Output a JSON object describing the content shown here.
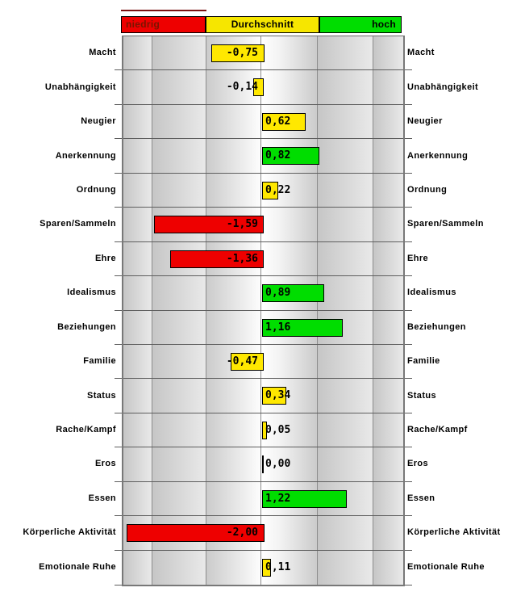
{
  "header": {
    "low_label": "niedrig",
    "avg_label": "Durchschnitt",
    "high_label": "hoch",
    "low_color": "#ee0000",
    "avg_color": "#f6e600",
    "high_color": "#00dd00",
    "low_text_color": "#7a1400"
  },
  "colors": {
    "bar_red": "#ee0000",
    "bar_yellow": "#ffe800",
    "bar_green": "#00dd00",
    "zero_tick": "#000000"
  },
  "rows": [
    {
      "label": "Macht",
      "value": -0.75,
      "display": "-0,75",
      "color": "#ffe800"
    },
    {
      "label": "Unabhängigkeit",
      "value": -0.14,
      "display": "-0,14",
      "color": "#ffe800"
    },
    {
      "label": "Neugier",
      "value": 0.62,
      "display": "0,62",
      "color": "#ffe800"
    },
    {
      "label": "Anerkennung",
      "value": 0.82,
      "display": "0,82",
      "color": "#00dd00"
    },
    {
      "label": "Ordnung",
      "value": 0.22,
      "display": "0,22",
      "color": "#ffe800"
    },
    {
      "label": "Sparen/Sammeln",
      "value": -1.59,
      "display": "-1,59",
      "color": "#ee0000"
    },
    {
      "label": "Ehre",
      "value": -1.36,
      "display": "-1,36",
      "color": "#ee0000"
    },
    {
      "label": "Idealismus",
      "value": 0.89,
      "display": "0,89",
      "color": "#00dd00"
    },
    {
      "label": "Beziehungen",
      "value": 1.16,
      "display": "1,16",
      "color": "#00dd00"
    },
    {
      "label": "Familie",
      "value": -0.47,
      "display": "-0,47",
      "color": "#ffe800"
    },
    {
      "label": "Status",
      "value": 0.34,
      "display": "0,34",
      "color": "#ffe800"
    },
    {
      "label": "Rache/Kampf",
      "value": 0.05,
      "display": "0,05",
      "color": "#ffe800"
    },
    {
      "label": "Eros",
      "value": 0.0,
      "display": "0,00",
      "color": "#000000"
    },
    {
      "label": "Essen",
      "value": 1.22,
      "display": "1,22",
      "color": "#00dd00"
    },
    {
      "label": "Körperliche Aktivität",
      "value": -2.0,
      "display": "-2,00",
      "color": "#ee0000"
    },
    {
      "label": "Emotionale Ruhe",
      "value": 0.11,
      "display": "0,11",
      "color": "#ffe800"
    }
  ],
  "chart_data": {
    "type": "bar",
    "orientation": "horizontal",
    "title": "",
    "xlabel": "",
    "ylabel": "",
    "xlim": [
      -2.05,
      2.05
    ],
    "grid": true,
    "bands": [
      {
        "label": "niedrig",
        "color": "#ee0000"
      },
      {
        "label": "Durchschnitt",
        "color": "#f6e600"
      },
      {
        "label": "hoch",
        "color": "#00dd00"
      }
    ],
    "categories": [
      "Macht",
      "Unabhängigkeit",
      "Neugier",
      "Anerkennung",
      "Ordnung",
      "Sparen/Sammeln",
      "Ehre",
      "Idealismus",
      "Beziehungen",
      "Familie",
      "Status",
      "Rache/Kampf",
      "Eros",
      "Essen",
      "Körperliche Aktivität",
      "Emotionale Ruhe"
    ],
    "values": [
      -0.75,
      -0.14,
      0.62,
      0.82,
      0.22,
      -1.59,
      -1.36,
      0.89,
      1.16,
      -0.47,
      0.34,
      0.05,
      0.0,
      1.22,
      -2.0,
      0.11
    ],
    "value_labels": [
      "-0,75",
      "-0,14",
      "0,62",
      "0,82",
      "0,22",
      "-1,59",
      "-1,36",
      "0,89",
      "1,16",
      "-0,47",
      "0,34",
      "0,05",
      "0,00",
      "1,22",
      "-2,00",
      "0,11"
    ],
    "bar_colors": [
      "#ffe800",
      "#ffe800",
      "#ffe800",
      "#00dd00",
      "#ffe800",
      "#ee0000",
      "#ee0000",
      "#00dd00",
      "#00dd00",
      "#ffe800",
      "#ffe800",
      "#ffe800",
      "#000000",
      "#00dd00",
      "#ee0000",
      "#ffe800"
    ]
  }
}
